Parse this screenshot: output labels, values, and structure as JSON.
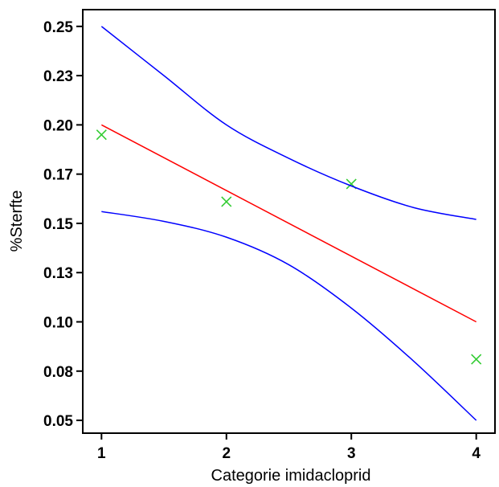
{
  "chart_data": {
    "type": "scatter",
    "title": "",
    "xlabel": "Categorie imidacloprid",
    "ylabel": "%Sterfte",
    "xlim": [
      0.85,
      4.15
    ],
    "ylim": [
      0.0435,
      0.2585
    ],
    "x_ticks": [
      1,
      2,
      3,
      4
    ],
    "x_tick_labels": [
      "1",
      "2",
      "3",
      "4"
    ],
    "y_ticks": [
      0.05,
      0.075,
      0.1,
      0.125,
      0.15,
      0.175,
      0.2,
      0.225,
      0.25
    ],
    "y_tick_labels": [
      "0.05",
      "0.08",
      "0.10",
      "0.13",
      "0.15",
      "0.17",
      "0.20",
      "0.23",
      "0.25"
    ],
    "grid": false,
    "legend": "none",
    "series": [
      {
        "kind": "points",
        "marker": "x",
        "color": "#33cc33",
        "x": [
          1,
          2,
          3,
          4
        ],
        "y": [
          0.195,
          0.161,
          0.17,
          0.081
        ]
      },
      {
        "kind": "fit",
        "color": "#ff0000",
        "x": [
          1,
          4
        ],
        "y": [
          0.2,
          0.1
        ]
      },
      {
        "kind": "upper-band",
        "color": "#0000ff",
        "x": [
          1,
          1.5,
          2,
          2.5,
          3,
          3.5,
          4
        ],
        "y": [
          0.25,
          0.225,
          0.2,
          0.183,
          0.169,
          0.158,
          0.152
        ]
      },
      {
        "kind": "lower-band",
        "color": "#0000ff",
        "x": [
          1,
          1.5,
          2,
          2.5,
          3,
          3.5,
          4
        ],
        "y": [
          0.156,
          0.151,
          0.143,
          0.129,
          0.107,
          0.08,
          0.05
        ]
      }
    ]
  }
}
